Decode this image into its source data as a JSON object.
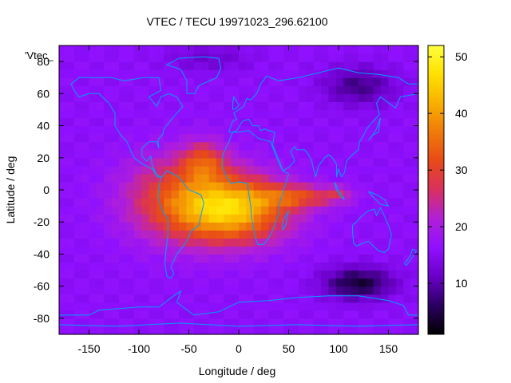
{
  "chart_data": {
    "type": "heatmap",
    "title": "VTEC / TECU 19971023_296.62100",
    "xlabel": "Longitude / deg",
    "ylabel": "Latitude / deg",
    "plot_key_label": "'Vtec_",
    "xlim": [
      -180,
      180
    ],
    "ylim": [
      -90,
      90
    ],
    "x_ticks": [
      -150,
      -100,
      -50,
      0,
      50,
      100,
      150
    ],
    "y_ticks": [
      -80,
      -60,
      -40,
      -20,
      0,
      20,
      40,
      60,
      80
    ],
    "colorbar": {
      "range": [
        1,
        52
      ],
      "ticks": [
        10,
        20,
        30,
        40,
        50
      ],
      "palette": [
        "#000000",
        "#2a0060",
        "#6a00c8",
        "#8f10ff",
        "#b020d8",
        "#d83060",
        "#e84a18",
        "#f07a0a",
        "#f8b000",
        "#ffe000",
        "#ffff40"
      ]
    },
    "grid": {
      "lon_step_deg": 7.5,
      "lat_step_deg": 5
    },
    "field_description_units": "TECU",
    "features": {
      "background_level": 16,
      "equatorial_anomaly_peak": {
        "lon": -5,
        "lat": -12,
        "value": 44
      },
      "enhanced_band": {
        "lon_range": [
          -130,
          110
        ],
        "lat_range": [
          -40,
          28
        ],
        "typical_value": 32
      },
      "low_regions": [
        {
          "lon": 120,
          "lat": -60,
          "value": 5
        },
        {
          "lon": 120,
          "lat": 65,
          "value": 8
        },
        {
          "lon": -30,
          "lat": 80,
          "value": 12
        }
      ]
    }
  },
  "colors": {
    "coastline": "#00a0ff",
    "axis": "#000000"
  }
}
